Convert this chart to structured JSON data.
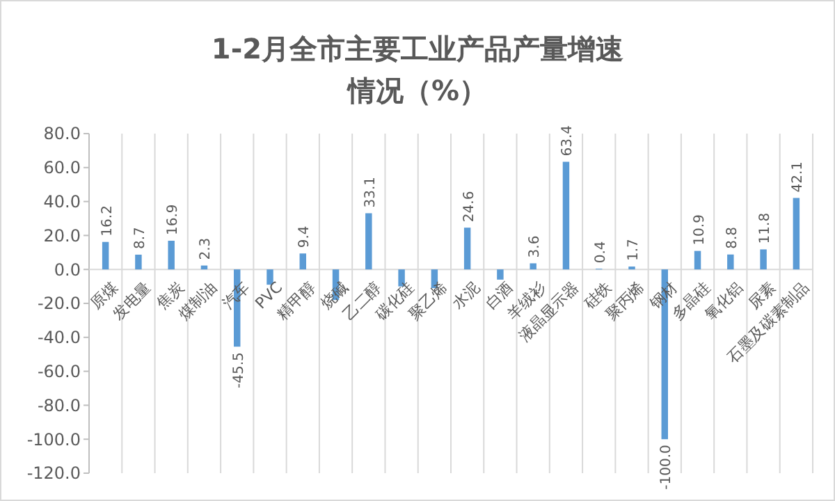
{
  "chart_data": {
    "type": "bar",
    "title": "1-2月全市主要工业产品产量增速情况（%）",
    "categories": [
      "原煤",
      "发电量",
      "焦炭",
      "煤制油",
      "汽车",
      "PVC",
      "精甲醇",
      "烧碱",
      "乙二醇",
      "碳化硅",
      "聚乙烯",
      "水泥",
      "白酒",
      "羊绒衫",
      "液晶显示器",
      "硅铁",
      "聚丙烯",
      "钢材",
      "多晶硅",
      "氧化铝",
      "尿素",
      "石墨及碳素制品"
    ],
    "values": [
      16.2,
      8.7,
      16.9,
      2.3,
      -45.5,
      -9,
      9.4,
      -18,
      33.1,
      -10,
      -11,
      24.6,
      -6,
      3.6,
      63.4,
      0.4,
      1.7,
      -100.0,
      10.9,
      8.8,
      11.8,
      42.1
    ],
    "value_labels": [
      "16.2",
      "8.7",
      "16.9",
      "2.3",
      "-45.5",
      null,
      "9.4",
      null,
      "33.1",
      null,
      null,
      "24.6",
      null,
      "3.6",
      "63.4",
      "0.4",
      "1.7",
      "-100.0",
      "10.9",
      "8.8",
      "11.8",
      "42.1"
    ],
    "color": "#5b9bd5",
    "ylim": [
      -120,
      80
    ],
    "yticks": [
      {
        "value": -120,
        "label": "-120.0"
      },
      {
        "value": -100,
        "label": "-100.0"
      },
      {
        "value": -80,
        "label": "-80.0"
      },
      {
        "value": -60,
        "label": "-60.0"
      },
      {
        "value": -40,
        "label": "-40.0"
      },
      {
        "value": -20,
        "label": "-20.0"
      },
      {
        "value": 0,
        "label": "0.0"
      },
      {
        "value": 20,
        "label": "20.0"
      },
      {
        "value": 40,
        "label": "40.0"
      },
      {
        "value": 60,
        "label": "60.0"
      },
      {
        "value": 80,
        "label": "80.0"
      }
    ],
    "grid": "x"
  }
}
